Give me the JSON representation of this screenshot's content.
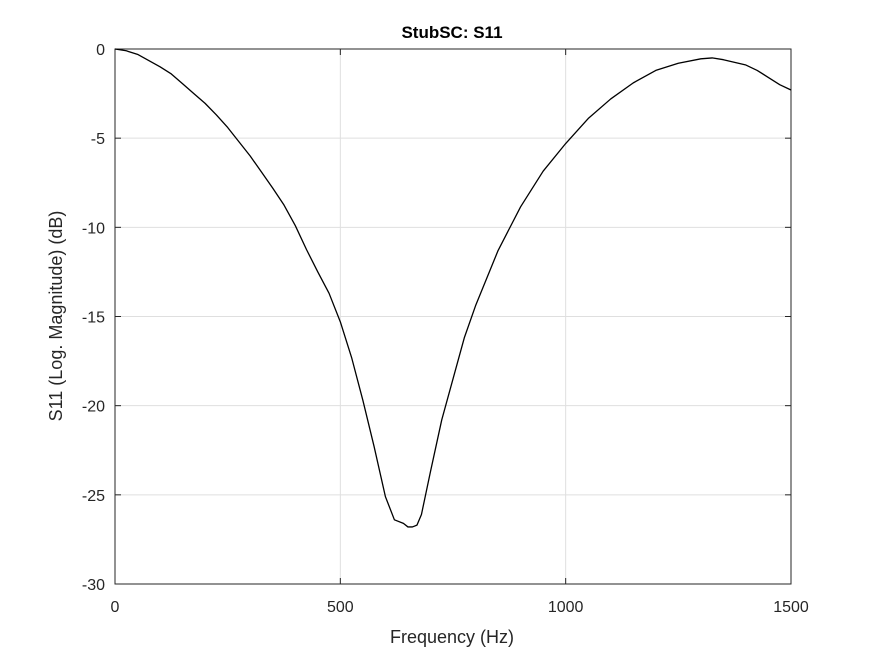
{
  "chart_data": {
    "type": "line",
    "title": "StubSC: S11",
    "xlabel": "Frequency (Hz)",
    "ylabel": "S11 (Log. Magnitude) (dB)",
    "xlim": [
      0,
      1500
    ],
    "ylim": [
      -30,
      0
    ],
    "xticks": [
      0,
      500,
      1000,
      1500
    ],
    "xtick_labels": [
      "0",
      "500",
      "1000",
      "1500"
    ],
    "yticks": [
      0,
      -5,
      -10,
      -15,
      -20,
      -25,
      -30
    ],
    "ytick_labels": [
      "0",
      "-5",
      "-10",
      "-15",
      "-20",
      "-25",
      "-30"
    ],
    "grid": true,
    "legend": "none",
    "colors": {
      "line": "#000000",
      "grid": "#dfdfdf",
      "axes": "#262626"
    },
    "series": [
      {
        "x": [
          0,
          25,
          50,
          75,
          100,
          125,
          150,
          175,
          200,
          225,
          250,
          275,
          300,
          325,
          350,
          375,
          400,
          425,
          450,
          475,
          500,
          525,
          550,
          575,
          600,
          620,
          640,
          650,
          660,
          670,
          680,
          700,
          725,
          750,
          775,
          800,
          850,
          900,
          950,
          1000,
          1050,
          1100,
          1150,
          1200,
          1250,
          1300,
          1325,
          1350,
          1375,
          1400,
          1425,
          1450,
          1475,
          1500
        ],
        "y": [
          0,
          -0.1,
          -0.3,
          -0.65,
          -1.0,
          -1.4,
          -1.95,
          -2.5,
          -3.05,
          -3.7,
          -4.4,
          -5.2,
          -6.0,
          -6.9,
          -7.8,
          -8.75,
          -9.9,
          -11.25,
          -12.5,
          -13.7,
          -15.3,
          -17.3,
          -19.7,
          -22.3,
          -25.1,
          -26.4,
          -26.6,
          -26.8,
          -26.8,
          -26.7,
          -26.1,
          -23.7,
          -20.8,
          -18.5,
          -16.2,
          -14.4,
          -11.3,
          -8.85,
          -6.85,
          -5.3,
          -3.9,
          -2.8,
          -1.9,
          -1.2,
          -0.8,
          -0.55,
          -0.5,
          -0.6,
          -0.75,
          -0.9,
          -1.2,
          -1.6,
          -2.0,
          -2.3
        ]
      }
    ]
  }
}
